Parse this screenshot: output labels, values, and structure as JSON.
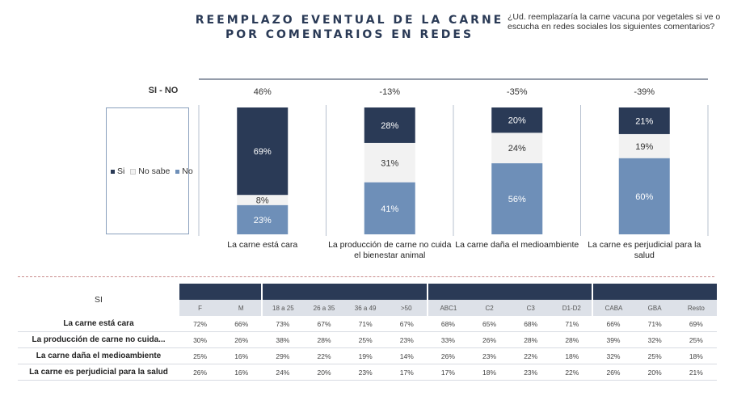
{
  "header": {
    "title_line1": "REEMPLAZO EVENTUAL DE LA CARNE",
    "title_line2": "POR COMENTARIOS EN REDES",
    "question": "¿Ud. reemplazaría la carne vacuna por vegetales si ve o escucha en redes sociales los siguientes comentarios?"
  },
  "sino_label": "SI - NO",
  "legend": [
    {
      "name": "Si",
      "color": "#2a3a56"
    },
    {
      "name": "No sabe",
      "color": "#f2f2f2"
    },
    {
      "name": "No",
      "color": "#6e8fb8"
    }
  ],
  "chart_data": {
    "type": "bar",
    "stacked": true,
    "percent": true,
    "categories": [
      "La carne está cara",
      "La producción de carne no cuida el bienestar animal",
      "La carne daña el medioambiente",
      "La carne es perjudicial para la salud"
    ],
    "category_lines": [
      [
        "La carne está cara"
      ],
      [
        "La producción de carne no cuida",
        "el bienestar animal"
      ],
      [
        "La carne daña el medioambiente"
      ],
      [
        "La carne es perjudicial para la",
        "salud"
      ]
    ],
    "series": [
      {
        "name": "Si",
        "values": [
          69,
          28,
          20,
          21
        ],
        "color": "#2a3a56",
        "label_color": "#ffffff"
      },
      {
        "name": "No sabe",
        "values": [
          8,
          31,
          24,
          19
        ],
        "color": "#f2f2f2",
        "label_color": "#333333"
      },
      {
        "name": "No",
        "values": [
          23,
          41,
          56,
          60
        ],
        "color": "#6e8fb8",
        "label_color": "#ffffff"
      }
    ],
    "sino": [
      "46%",
      "-13%",
      "-35%",
      "-39%"
    ],
    "ylim": [
      0,
      100
    ],
    "legend_position": "left"
  },
  "table": {
    "corner_label": "SI",
    "columns": [
      "F",
      "M",
      "18 a 25",
      "26 a 35",
      "36 a 49",
      ">50",
      "ABC1",
      "C2",
      "C3",
      "D1-D2",
      "CABA",
      "GBA",
      "Resto"
    ],
    "rows": [
      {
        "label": "La carne está cara",
        "values": [
          "72%",
          "66%",
          "73%",
          "67%",
          "71%",
          "67%",
          "68%",
          "65%",
          "68%",
          "71%",
          "66%",
          "71%",
          "69%"
        ]
      },
      {
        "label": "La producción de carne no cuida...",
        "values": [
          "30%",
          "26%",
          "38%",
          "28%",
          "25%",
          "23%",
          "33%",
          "26%",
          "28%",
          "28%",
          "39%",
          "32%",
          "25%"
        ]
      },
      {
        "label": "La carne daña el medioambiente",
        "values": [
          "25%",
          "16%",
          "29%",
          "22%",
          "19%",
          "14%",
          "26%",
          "23%",
          "22%",
          "18%",
          "32%",
          "25%",
          "18%"
        ]
      },
      {
        "label": "La carne es perjudicial para la salud",
        "values": [
          "26%",
          "16%",
          "24%",
          "20%",
          "23%",
          "17%",
          "17%",
          "18%",
          "23%",
          "22%",
          "26%",
          "20%",
          "21%"
        ]
      }
    ]
  }
}
